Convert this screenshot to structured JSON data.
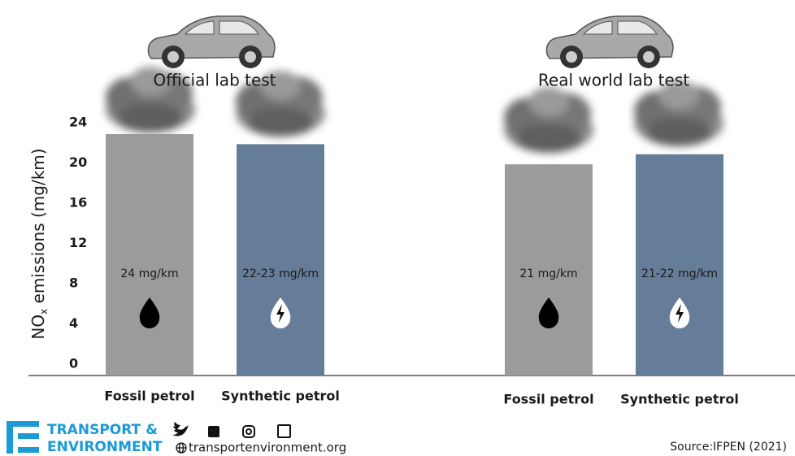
{
  "chart_data": {
    "type": "bar",
    "ylabel": [
      "NO",
      "x",
      " emissions (mg/km)"
    ],
    "categories": [
      "Official lab test",
      "Real world lab test"
    ],
    "series": [
      {
        "name": "Fossil petrol",
        "color": "#9b9b9b",
        "values": [
          24,
          21
        ],
        "value_labels": [
          "24 mg/km",
          "21 mg/km"
        ]
      },
      {
        "name": "Synthetic petrol",
        "color": "#667d99",
        "values": [
          23,
          22
        ],
        "value_labels": [
          "22-23 mg/km",
          "21-22 mg/km"
        ]
      }
    ],
    "ylim": [
      0,
      24
    ],
    "yticks": [
      0,
      4,
      8,
      12,
      16,
      20,
      24
    ]
  },
  "footer": {
    "logo_top": "TRANSPORT &",
    "logo_bottom": "ENVIRONMENT",
    "website": "transportenvironment.org",
    "source": "Source:IFPEN (2021)"
  }
}
